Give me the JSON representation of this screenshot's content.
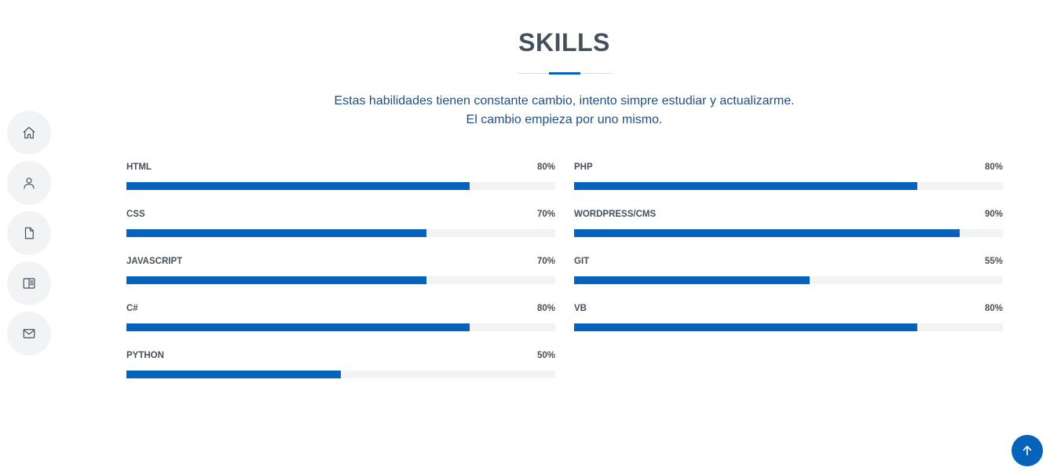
{
  "nav": {
    "items": [
      {
        "icon": "home-icon"
      },
      {
        "icon": "person-icon"
      },
      {
        "icon": "file-icon"
      },
      {
        "icon": "book-icon"
      },
      {
        "icon": "envelope-icon"
      }
    ]
  },
  "section": {
    "title": "SKILLS",
    "desc_line1": "Estas habilidades tienen constante cambio, intento simpre estudiar y actualizarme.",
    "desc_line2": "El cambio empieza por uno mismo."
  },
  "colors": {
    "accent": "#0563bb",
    "track": "#f2f3f5",
    "text": "#45505b"
  },
  "skills": {
    "left": [
      {
        "name": "HTML",
        "percent_label": "80%",
        "value": 80
      },
      {
        "name": "CSS",
        "percent_label": "70%",
        "value": 70
      },
      {
        "name": "JAVASCRIPT",
        "percent_label": "70%",
        "value": 70
      },
      {
        "name": "C#",
        "percent_label": "80%",
        "value": 80
      },
      {
        "name": "PYTHON",
        "percent_label": "50%",
        "value": 50
      }
    ],
    "right": [
      {
        "name": "PHP",
        "percent_label": "80%",
        "value": 80
      },
      {
        "name": "WORDPRESS/CMS",
        "percent_label": "90%",
        "value": 90
      },
      {
        "name": "GIT",
        "percent_label": "55%",
        "value": 55
      },
      {
        "name": "VB",
        "percent_label": "80%",
        "value": 80
      }
    ]
  },
  "back_to_top": {
    "icon": "arrow-up-icon"
  }
}
